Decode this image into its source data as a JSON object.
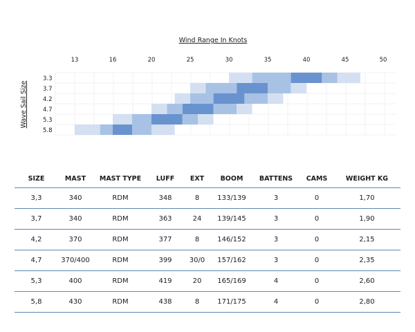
{
  "chart_data": {
    "type": "heatmap",
    "title": "Wind Range In Knots",
    "ylabel": "Wave Sail Size",
    "x_ticks": [
      "13",
      "16",
      "20",
      "25",
      "30",
      "35",
      "40",
      "45",
      "50"
    ],
    "y_categories": [
      "3.3",
      "3.7",
      "4.2",
      "4.7",
      "5.3",
      "5.8"
    ],
    "colors": {
      "light": "#d4e0f1",
      "medium": "#a8c2e5",
      "dark": "#6993cf"
    },
    "rows": [
      {
        "size": "3.3",
        "light": [
          30,
          33
        ],
        "medium": [
          33,
          38
        ],
        "dark": [
          38,
          42
        ],
        "medium2": [
          42,
          44
        ],
        "light2": [
          44,
          47
        ]
      },
      {
        "size": "3.7",
        "light": [
          25,
          27
        ],
        "medium": [
          27,
          31
        ],
        "dark": [
          31,
          35
        ],
        "medium2": [
          35,
          38
        ],
        "light2": [
          38,
          40
        ]
      },
      {
        "size": "4.2",
        "light": [
          23,
          25
        ],
        "medium": [
          25,
          28
        ],
        "dark": [
          28,
          32
        ],
        "medium2": [
          32,
          35
        ],
        "light2": [
          35,
          37
        ]
      },
      {
        "size": "4.7",
        "light": [
          20,
          22
        ],
        "medium": [
          22,
          24
        ],
        "dark": [
          24,
          28
        ],
        "medium2": [
          28,
          31
        ],
        "light2": [
          31,
          33
        ]
      },
      {
        "size": "5.3",
        "light": [
          16,
          18
        ],
        "medium": [
          18,
          20
        ],
        "dark": [
          20,
          24
        ],
        "medium2": [
          24,
          26
        ],
        "light2": [
          26,
          28
        ]
      },
      {
        "size": "5.8",
        "light": [
          13,
          15
        ],
        "medium": [
          15,
          16
        ],
        "dark": [
          16,
          18
        ],
        "medium2": [
          18,
          20
        ],
        "light2": [
          20,
          23
        ]
      }
    ]
  },
  "table": {
    "headers": [
      "SIZE",
      "MAST",
      "MAST TYPE",
      "LUFF",
      "EXT",
      "BOOM",
      "BATTENS",
      "CAMS",
      "WEIGHT KG"
    ],
    "rows": [
      [
        "3,3",
        "340",
        "RDM",
        "348",
        "8",
        "133/139",
        "3",
        "0",
        "1,70"
      ],
      [
        "3,7",
        "340",
        "RDM",
        "363",
        "24",
        "139/145",
        "3",
        "0",
        "1,90"
      ],
      [
        "4,2",
        "370",
        "RDM",
        "377",
        "8",
        "146/152",
        "3",
        "0",
        "2,15"
      ],
      [
        "4,7",
        "370/400",
        "RDM",
        "399",
        "30/0",
        "157/162",
        "3",
        "0",
        "2,35"
      ],
      [
        "5,3",
        "400",
        "RDM",
        "419",
        "20",
        "165/169",
        "4",
        "0",
        "2,60"
      ],
      [
        "5,8",
        "430",
        "RDM",
        "438",
        "8",
        "171/175",
        "4",
        "0",
        "2,80"
      ]
    ]
  }
}
